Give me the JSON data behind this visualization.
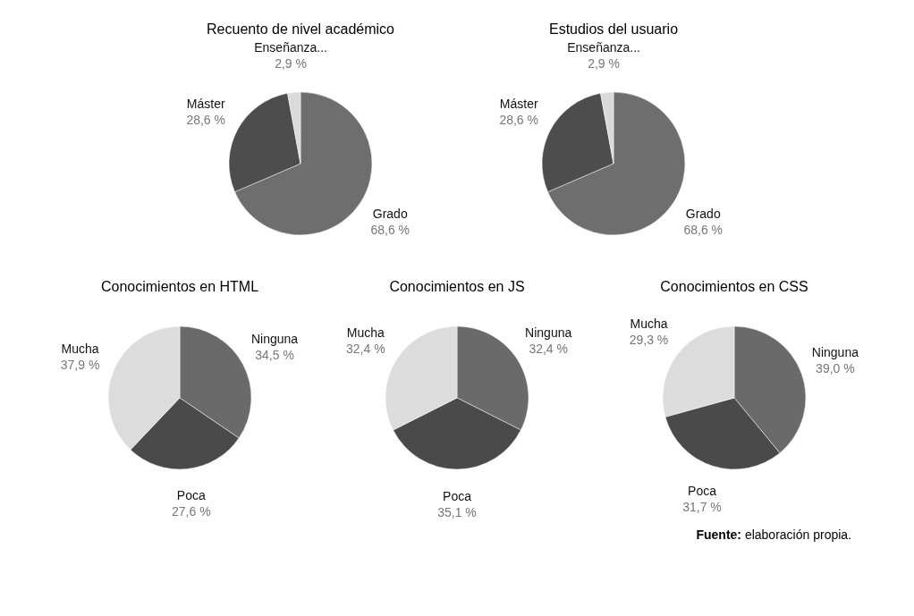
{
  "chart_data": [
    {
      "type": "pie",
      "title": "Recuento de nivel académico",
      "categories": [
        "Grado",
        "Máster",
        "Enseñanza..."
      ],
      "values": [
        68.6,
        28.6,
        2.9
      ],
      "colors": [
        "#6e6e6e",
        "#4d4d4d",
        "#dadada"
      ],
      "value_labels": [
        "68,6 %",
        "28,6 %",
        "2,9 %"
      ]
    },
    {
      "type": "pie",
      "title": "Estudios del usuario",
      "categories": [
        "Grado",
        "Máster",
        "Enseñanza..."
      ],
      "values": [
        68.6,
        28.6,
        2.9
      ],
      "colors": [
        "#6e6e6e",
        "#4d4d4d",
        "#dadada"
      ],
      "value_labels": [
        "68,6 %",
        "28,6 %",
        "2,9 %"
      ]
    },
    {
      "type": "pie",
      "title": "Conocimientos en HTML",
      "categories": [
        "Ninguna",
        "Poca",
        "Mucha"
      ],
      "values": [
        34.5,
        27.6,
        37.9
      ],
      "colors": [
        "#6a6a6a",
        "#4a4a4a",
        "#dcdcdc"
      ],
      "value_labels": [
        "34,5 %",
        "27,6 %",
        "37,9 %"
      ]
    },
    {
      "type": "pie",
      "title": "Conocimientos en JS",
      "categories": [
        "Ninguna",
        "Poca",
        "Mucha"
      ],
      "values": [
        32.4,
        35.1,
        32.4
      ],
      "colors": [
        "#6a6a6a",
        "#4a4a4a",
        "#dcdcdc"
      ],
      "value_labels": [
        "32,4 %",
        "35,1 %",
        "32,4 %"
      ]
    },
    {
      "type": "pie",
      "title": "Conocimientos en CSS",
      "categories": [
        "Ninguna",
        "Poca",
        "Mucha"
      ],
      "values": [
        39.0,
        31.7,
        29.3
      ],
      "colors": [
        "#6a6a6a",
        "#4a4a4a",
        "#dcdcdc"
      ],
      "value_labels": [
        "39,0 %",
        "31,7 %",
        "29,3 %"
      ],
      "annotations": [
        "Fuente: elaboración propia."
      ]
    }
  ]
}
